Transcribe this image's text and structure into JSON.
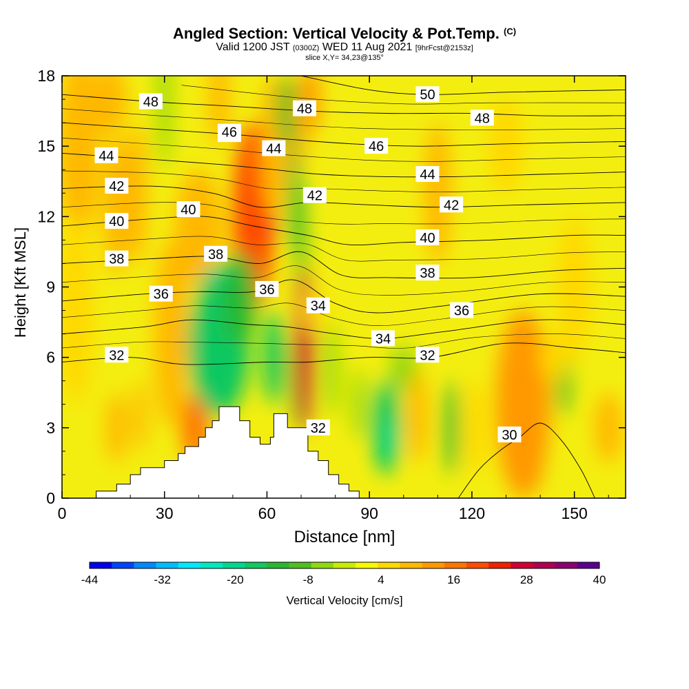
{
  "title": {
    "main": "Angled Section: Vertical Velocity & Pot.Temp.",
    "copyright": "(C)",
    "valid_prefix": "Valid 1200 JST",
    "valid_utc": "(0300Z)",
    "valid_date": "WED 11 Aug 2021",
    "forecast": "[9hrFcst@2153z]",
    "slice": "slice X,Y= 34,23@135°"
  },
  "chart_data": {
    "type": "heatmap",
    "xlabel": "Distance [nm]",
    "ylabel": "Height [Kft MSL]",
    "xlim": [
      0,
      165
    ],
    "ylim": [
      0,
      18
    ],
    "x_ticks": [
      "0",
      "30",
      "60",
      "90",
      "120",
      "150"
    ],
    "x_tick_values": [
      0,
      30,
      60,
      90,
      120,
      150
    ],
    "y_ticks": [
      "0",
      "3",
      "6",
      "9",
      "12",
      "15",
      "18"
    ],
    "y_tick_values": [
      0,
      3,
      6,
      9,
      12,
      15,
      18
    ],
    "colorbar": {
      "label": "Vertical Velocity [cm/s]",
      "range": [
        -44,
        40
      ],
      "tick_labels": [
        "-44",
        "-32",
        "-20",
        "-8",
        "4",
        "16",
        "28",
        "40"
      ],
      "tick_values": [
        -44,
        -32,
        -20,
        -8,
        4,
        16,
        28,
        40
      ],
      "colors": [
        "#0000ee",
        "#0044ff",
        "#0088ff",
        "#00bbff",
        "#00e8ff",
        "#00e8c0",
        "#00d890",
        "#10c860",
        "#28b830",
        "#50c020",
        "#90d810",
        "#c8ec00",
        "#f8f800",
        "#ffd800",
        "#ffb800",
        "#ff9800",
        "#ff7400",
        "#ff4c00",
        "#f02000",
        "#d00030",
        "#b00050",
        "#8c0070",
        "#5a0090"
      ]
    },
    "velocity_cells": [
      {
        "x": 5,
        "y": 15,
        "v": 8,
        "rx": 6,
        "ry": 4
      },
      {
        "x": 14,
        "y": 17,
        "v": 10,
        "rx": 5,
        "ry": 1.5
      },
      {
        "x": 16,
        "y": 12.5,
        "v": 10,
        "rx": 4,
        "ry": 3
      },
      {
        "x": 22,
        "y": 13,
        "v": 10,
        "rx": 3,
        "ry": 3
      },
      {
        "x": 4,
        "y": 8,
        "v": 6,
        "rx": 5,
        "ry": 4
      },
      {
        "x": 16,
        "y": 3,
        "v": 10,
        "rx": 3,
        "ry": 1.5
      },
      {
        "x": 23,
        "y": 3.5,
        "v": 10,
        "rx": 2,
        "ry": 1.5
      },
      {
        "x": 39,
        "y": 3,
        "v": 15,
        "rx": 4,
        "ry": 1.5
      },
      {
        "x": 32,
        "y": 7,
        "v": 8,
        "rx": 5,
        "ry": 4
      },
      {
        "x": 30,
        "y": 17,
        "v": -5,
        "rx": 2,
        "ry": 3
      },
      {
        "x": 40,
        "y": 11.5,
        "v": 10,
        "rx": 7,
        "ry": 2.5
      },
      {
        "x": 46,
        "y": 17,
        "v": 10,
        "rx": 3,
        "ry": 2
      },
      {
        "x": 58,
        "y": 12.8,
        "v": 32,
        "rx": 5,
        "ry": 3
      },
      {
        "x": 56,
        "y": 12,
        "v": 20,
        "rx": 6,
        "ry": 4
      },
      {
        "x": 62,
        "y": 15,
        "v": 10,
        "rx": 4,
        "ry": 3
      },
      {
        "x": 66,
        "y": 16.5,
        "v": -10,
        "rx": 3,
        "ry": 1.5
      },
      {
        "x": 68,
        "y": 13.5,
        "v": -12,
        "rx": 1.5,
        "ry": 3
      },
      {
        "x": 70,
        "y": 16,
        "v": 8,
        "rx": 2,
        "ry": 2
      },
      {
        "x": 73,
        "y": 17,
        "v": 12,
        "rx": 2.5,
        "ry": 1.5
      },
      {
        "x": 70,
        "y": 11,
        "v": -8,
        "rx": 1.5,
        "ry": 2.5
      },
      {
        "x": 46,
        "y": 7.5,
        "v": -22,
        "rx": 7,
        "ry": 2.5
      },
      {
        "x": 46,
        "y": 6.5,
        "v": -16,
        "rx": 9,
        "ry": 3
      },
      {
        "x": 52,
        "y": 8.5,
        "v": -14,
        "rx": 5,
        "ry": 2
      },
      {
        "x": 62,
        "y": 6,
        "v": -15,
        "rx": 3,
        "ry": 2
      },
      {
        "x": 69,
        "y": 5,
        "v": -10,
        "rx": 2,
        "ry": 2
      },
      {
        "x": 71,
        "y": 6,
        "v": 36,
        "rx": 1.5,
        "ry": 2.5
      },
      {
        "x": 71,
        "y": 6.3,
        "v": 26,
        "rx": 2.5,
        "ry": 3.5
      },
      {
        "x": 74,
        "y": 8,
        "v": 6,
        "rx": 3,
        "ry": 1
      },
      {
        "x": 79,
        "y": 5.5,
        "v": -6,
        "rx": 2,
        "ry": 2
      },
      {
        "x": 87,
        "y": 4,
        "v": -6,
        "rx": 2,
        "ry": 1.5
      },
      {
        "x": 95,
        "y": 3,
        "v": -18,
        "rx": 4,
        "ry": 2
      },
      {
        "x": 96,
        "y": 2.5,
        "v": -22,
        "rx": 2,
        "ry": 1
      },
      {
        "x": 100,
        "y": 5.5,
        "v": -6,
        "rx": 4,
        "ry": 1
      },
      {
        "x": 104,
        "y": 3.5,
        "v": 8,
        "rx": 3,
        "ry": 2
      },
      {
        "x": 114,
        "y": 3,
        "v": -12,
        "rx": 2,
        "ry": 2
      },
      {
        "x": 121,
        "y": 3,
        "v": 6,
        "rx": 3,
        "ry": 2
      },
      {
        "x": 131,
        "y": 4,
        "v": 26,
        "rx": 1.5,
        "ry": 2
      },
      {
        "x": 139,
        "y": 3.5,
        "v": 24,
        "rx": 2.5,
        "ry": 3
      },
      {
        "x": 135,
        "y": 4,
        "v": 14,
        "rx": 8,
        "ry": 4
      },
      {
        "x": 147,
        "y": 5,
        "v": -10,
        "rx": 2,
        "ry": 1.5
      },
      {
        "x": 160,
        "y": 3,
        "v": 8,
        "rx": 4,
        "ry": 1.5
      },
      {
        "x": 110,
        "y": 13,
        "v": 8,
        "rx": 4,
        "ry": 3
      },
      {
        "x": 130,
        "y": 15,
        "v": 6,
        "rx": 5,
        "ry": 2
      },
      {
        "x": 150,
        "y": 9,
        "v": 6,
        "rx": 5,
        "ry": 3
      },
      {
        "x": 144,
        "y": 6,
        "v": 6,
        "rx": 4,
        "ry": 1
      }
    ],
    "terrain": {
      "x": [
        10,
        10,
        16,
        16,
        20,
        20,
        23,
        23,
        30,
        30,
        34,
        34,
        36,
        36,
        40,
        40,
        42,
        42,
        44,
        44,
        46,
        46,
        52,
        52,
        55,
        55,
        58,
        58,
        61,
        61,
        62,
        62,
        66,
        66,
        72,
        72,
        75,
        75,
        78,
        78,
        81,
        81,
        84,
        84,
        87,
        87
      ],
      "y": [
        0,
        0.3,
        0.3,
        0.6,
        0.6,
        1.0,
        1.0,
        1.3,
        1.3,
        1.6,
        1.6,
        1.9,
        1.9,
        2.2,
        2.2,
        2.6,
        2.6,
        3.0,
        3.0,
        3.3,
        3.3,
        3.9,
        3.9,
        3.3,
        3.3,
        2.6,
        2.6,
        2.3,
        2.3,
        2.6,
        2.6,
        3.6,
        3.6,
        3.0,
        3.0,
        2.0,
        2.0,
        1.6,
        1.6,
        1.0,
        1.0,
        0.6,
        0.6,
        0.3,
        0.3,
        0
      ]
    },
    "theta_contours": [
      {
        "value": 30,
        "label": "30",
        "label_xy": [
          131,
          2.7
        ],
        "pts": [
          [
            116,
            0
          ],
          [
            122,
            1.2
          ],
          [
            128,
            2.0
          ],
          [
            134,
            2.6
          ],
          [
            140,
            3.2
          ],
          [
            146,
            2.5
          ],
          [
            152,
            1.2
          ],
          [
            156,
            0
          ]
        ]
      },
      {
        "value": 32,
        "label": "32",
        "label_xy": [
          16,
          6.1
        ],
        "pts": [
          [
            0,
            5.8
          ],
          [
            20,
            6.0
          ],
          [
            36,
            5.7
          ],
          [
            60,
            5.8
          ],
          [
            72,
            5.8
          ],
          [
            90,
            6.0
          ],
          [
            108,
            6.0
          ],
          [
            130,
            6.6
          ],
          [
            150,
            6.4
          ],
          [
            165,
            6.2
          ]
        ]
      },
      {
        "value": 34,
        "label": "34",
        "label_xy": [
          94,
          6.8
        ],
        "pts": [
          [
            0,
            7.0
          ],
          [
            24,
            7.3
          ],
          [
            38,
            7.6
          ],
          [
            55,
            7.4
          ],
          [
            66,
            7.3
          ],
          [
            80,
            7.0
          ],
          [
            94,
            6.8
          ],
          [
            112,
            7.1
          ],
          [
            140,
            7.6
          ],
          [
            165,
            7.4
          ]
        ]
      },
      {
        "value": 36,
        "label": "36",
        "label_xy": [
          29,
          8.7
        ],
        "pts": [
          [
            0,
            8.4
          ],
          [
            24,
            8.7
          ],
          [
            40,
            8.8
          ],
          [
            56,
            8.8
          ],
          [
            68,
            9.3
          ],
          [
            80,
            8.3
          ],
          [
            92,
            7.9
          ],
          [
            112,
            8.2
          ],
          [
            140,
            8.7
          ],
          [
            165,
            8.6
          ]
        ]
      },
      {
        "value": 38,
        "label": "38",
        "label_xy": [
          16,
          10.2
        ],
        "pts": [
          [
            0,
            10.0
          ],
          [
            26,
            10.2
          ],
          [
            44,
            10.3
          ],
          [
            58,
            10.0
          ],
          [
            70,
            10.5
          ],
          [
            82,
            9.5
          ],
          [
            96,
            9.4
          ],
          [
            120,
            9.4
          ],
          [
            145,
            9.7
          ],
          [
            165,
            9.8
          ]
        ]
      },
      {
        "value": 40,
        "label": "40",
        "label_xy": [
          16,
          11.8
        ],
        "pts": [
          [
            0,
            11.6
          ],
          [
            26,
            11.9
          ],
          [
            42,
            12.0
          ],
          [
            56,
            11.6
          ],
          [
            72,
            11.2
          ],
          [
            84,
            10.8
          ],
          [
            100,
            10.9
          ],
          [
            125,
            11.0
          ],
          [
            150,
            11.2
          ],
          [
            165,
            11.2
          ]
        ]
      },
      {
        "value": 42,
        "label": "42",
        "label_xy": [
          16,
          13.3
        ],
        "pts": [
          [
            0,
            13.2
          ],
          [
            26,
            13.3
          ],
          [
            44,
            13.0
          ],
          [
            58,
            12.4
          ],
          [
            72,
            12.6
          ],
          [
            90,
            12.5
          ],
          [
            110,
            12.4
          ],
          [
            135,
            12.5
          ],
          [
            165,
            12.6
          ]
        ]
      },
      {
        "value": 44,
        "label": "44",
        "label_xy": [
          13,
          14.6
        ],
        "pts": [
          [
            0,
            14.7
          ],
          [
            30,
            14.4
          ],
          [
            48,
            14.2
          ],
          [
            62,
            14.0
          ],
          [
            76,
            13.8
          ],
          [
            95,
            13.7
          ],
          [
            115,
            13.7
          ],
          [
            140,
            13.8
          ],
          [
            165,
            13.9
          ]
        ]
      },
      {
        "value": 46,
        "label": "46",
        "label_xy": [
          49,
          15.5
        ],
        "pts": [
          [
            0,
            16.0
          ],
          [
            30,
            15.7
          ],
          [
            50,
            15.5
          ],
          [
            66,
            15.3
          ],
          [
            85,
            15.1
          ],
          [
            105,
            15.0
          ],
          [
            130,
            15.1
          ],
          [
            165,
            15.2
          ]
        ]
      },
      {
        "value": 48,
        "label": "48",
        "label_xy": [
          26,
          16.9
        ],
        "pts": [
          [
            0,
            17.2
          ],
          [
            26,
            16.9
          ],
          [
            50,
            16.7
          ],
          [
            72,
            16.5
          ],
          [
            95,
            16.4
          ],
          [
            120,
            16.4
          ],
          [
            140,
            16.3
          ],
          [
            165,
            16.3
          ]
        ]
      },
      {
        "value": 50,
        "label": "50",
        "label_xy": [
          107,
          17.2
        ],
        "pts": [
          [
            70,
            18.0
          ],
          [
            90,
            17.4
          ],
          [
            107,
            17.2
          ],
          [
            130,
            17.3
          ],
          [
            165,
            17.4
          ]
        ]
      }
    ],
    "extra_contour_labels": [
      {
        "label": "46",
        "x": 92,
        "y": 15.0
      },
      {
        "label": "48",
        "x": 123,
        "y": 16.2
      },
      {
        "label": "44",
        "x": 107,
        "y": 13.8
      },
      {
        "label": "42",
        "x": 114,
        "y": 12.5
      },
      {
        "label": "40",
        "x": 107,
        "y": 11.1
      },
      {
        "label": "38",
        "x": 107,
        "y": 9.6
      },
      {
        "label": "36",
        "x": 117,
        "y": 8.0
      },
      {
        "label": "32",
        "x": 107,
        "y": 6.1
      },
      {
        "label": "48",
        "x": 71,
        "y": 16.6
      },
      {
        "label": "46",
        "x": 49,
        "y": 15.6
      },
      {
        "label": "44",
        "x": 62,
        "y": 14.9
      },
      {
        "label": "42",
        "x": 74,
        "y": 12.9
      },
      {
        "label": "40",
        "x": 37,
        "y": 12.3
      },
      {
        "label": "38",
        "x": 45,
        "y": 10.4
      },
      {
        "label": "36",
        "x": 60,
        "y": 8.9
      },
      {
        "label": "34",
        "x": 75,
        "y": 8.2
      },
      {
        "label": "32",
        "x": 75,
        "y": 3.0
      }
    ]
  }
}
